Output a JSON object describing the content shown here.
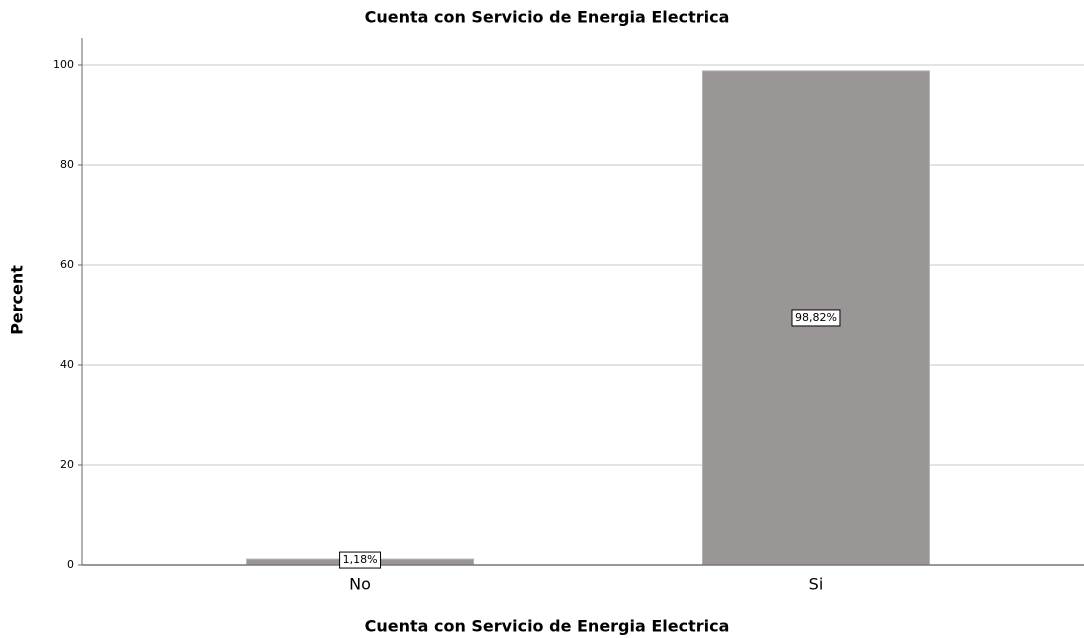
{
  "chart_data": {
    "type": "bar",
    "title": "Cuenta con Servicio de Energia Electrica",
    "x_label": "Cuenta con Servicio de Energia Electrica",
    "y_label": "Percent",
    "categories": [
      "No",
      "Si"
    ],
    "values": [
      1.18,
      98.82
    ],
    "value_labels": [
      "1,18%",
      "98,82%"
    ],
    "color": "#9a9696",
    "ylim": [
      0,
      105.4
    ],
    "yticks": [
      0,
      20,
      40,
      60,
      80,
      100
    ],
    "grid": true
  }
}
